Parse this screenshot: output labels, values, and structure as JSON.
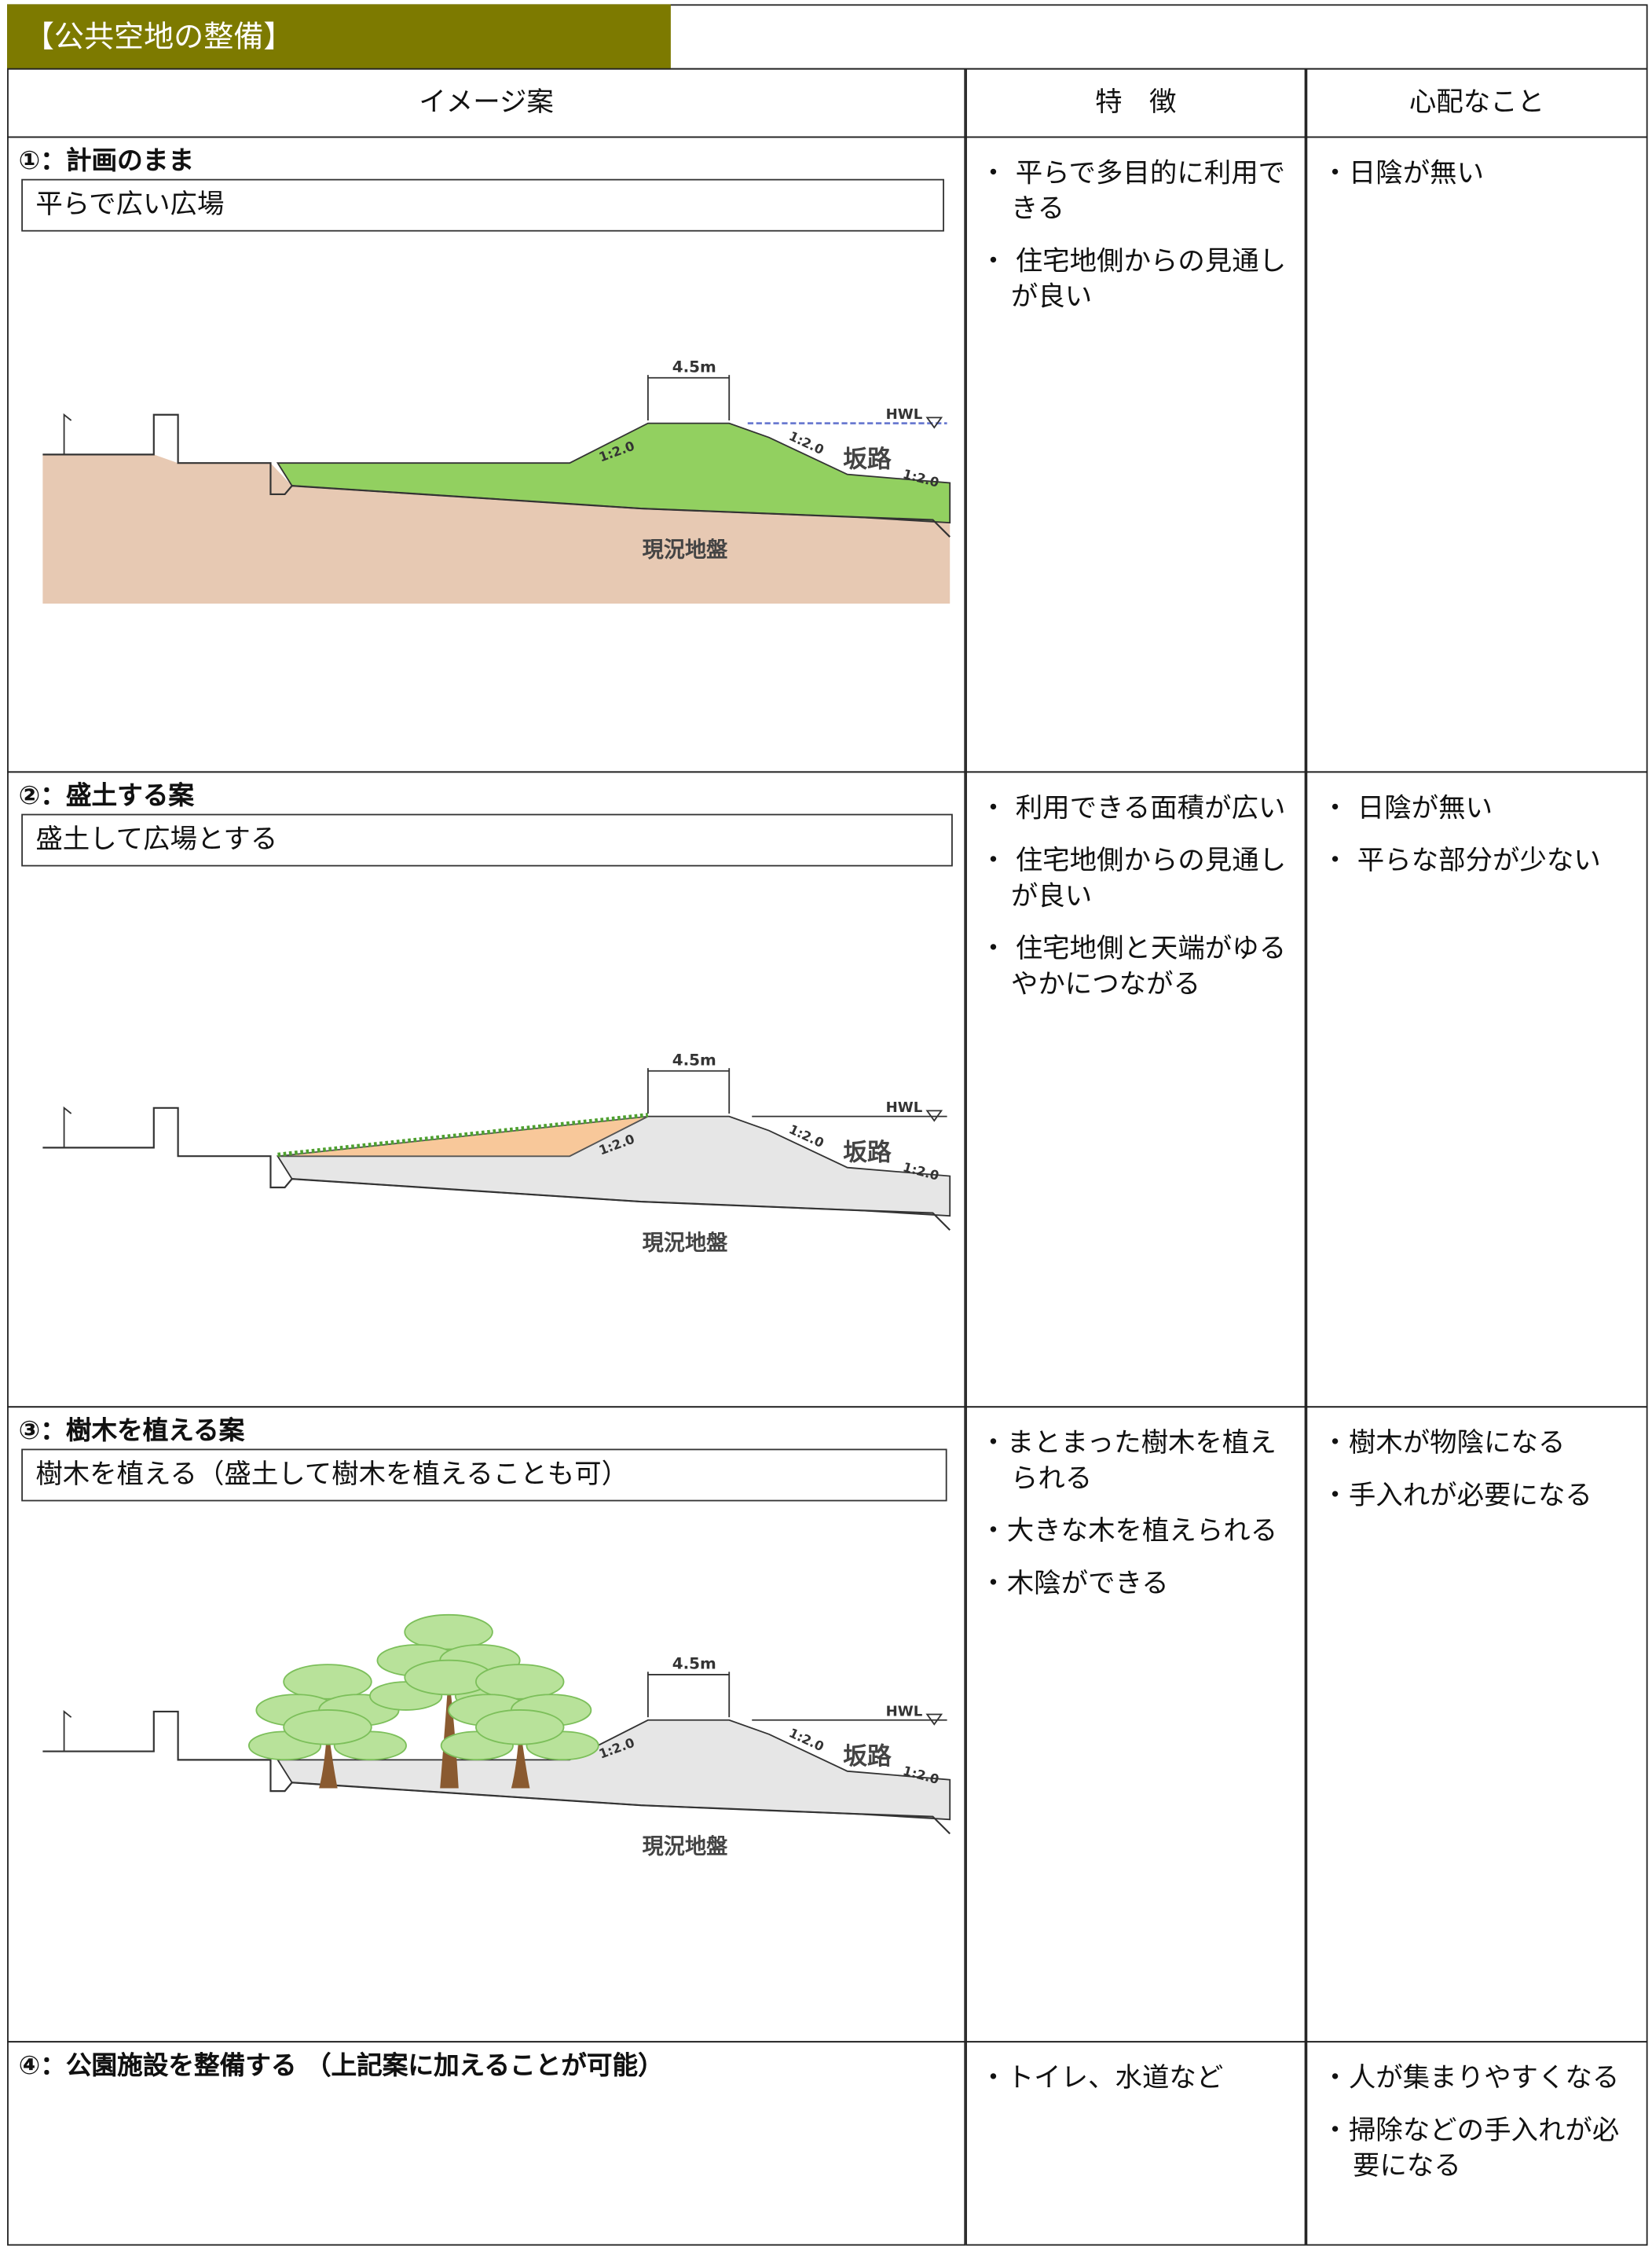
{
  "header": {
    "title": "【公共空地の整備】"
  },
  "table": {
    "headers": [
      "イメージ案",
      "特　徴",
      "心配なこと"
    ],
    "rows": [
      {
        "label": "①：計画のまま",
        "caption": "平らで広い広場",
        "features": [
          "・ 平らで多目的に利用できる",
          "・ 住宅地側からの見通しが良い"
        ],
        "concerns": [
          "・日陰が無い"
        ],
        "diagram": {
          "width_label": "4.5m",
          "hwl": "HWL",
          "slope_left": "1:2.0",
          "slope_right": "1:2.0",
          "ramp": "坂路",
          "slope_ramp": "1:2.0",
          "ground": "現況地盤"
        }
      },
      {
        "label": "②：盛土する案",
        "caption": "盛土して広場とする",
        "features": [
          "・ 利用できる面積が広い",
          "・ 住宅地側からの見通しが良い",
          "・ 住宅地側と天端がゆるやかにつながる"
        ],
        "concerns": [
          "・ 日陰が無い",
          "・ 平らな部分が少ない"
        ],
        "diagram": {
          "width_label": "4.5m",
          "hwl": "HWL",
          "slope_left": "1:2.0",
          "slope_right": "1:2.0",
          "ramp": "坂路",
          "slope_ramp": "1:2.0",
          "ground": "現況地盤"
        }
      },
      {
        "label": "③：樹木を植える案",
        "caption": "樹木を植える（盛土して樹木を植えることも可）",
        "features": [
          "・まとまった樹木を植えられる",
          "・大きな木を植えられる",
          "・木陰ができる"
        ],
        "concerns": [
          "・樹木が物陰になる",
          "・手入れが必要になる"
        ],
        "diagram": {
          "width_label": "4.5m",
          "hwl": "HWL",
          "slope_left": "1:2.0",
          "slope_right": "1:2.0",
          "ramp": "坂路",
          "slope_ramp": "1:2.0",
          "ground": "現況地盤"
        }
      },
      {
        "label": "④：公園施設を整備する （上記案に加えることが可能）",
        "features": [
          "・トイレ、水道など"
        ],
        "concerns": [
          "・人が集まりやすくなる",
          "・掃除などの手入れが必要になる"
        ]
      }
    ]
  }
}
